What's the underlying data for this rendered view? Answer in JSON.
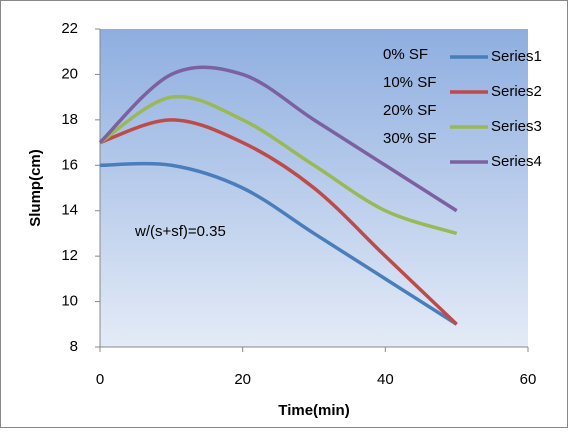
{
  "chart_data": {
    "type": "line",
    "x_label": "Time(min)",
    "y_label": "Slump(cm)",
    "x": [
      0,
      10,
      20,
      30,
      40,
      50
    ],
    "series": [
      {
        "name": "Series1",
        "color": "#4a7ebb",
        "values": [
          16,
          16,
          15,
          13,
          11,
          9
        ]
      },
      {
        "name": "Series2",
        "color": "#be4b48",
        "values": [
          17,
          18,
          17,
          15,
          12,
          9
        ]
      },
      {
        "name": "Series3",
        "color": "#98b954",
        "values": [
          17,
          19,
          18,
          16,
          14,
          13
        ]
      },
      {
        "name": "Series4",
        "color": "#7d60a0",
        "values": [
          17,
          20,
          20,
          18,
          16,
          14
        ]
      }
    ],
    "xlim": [
      0,
      60
    ],
    "xticks": [
      0,
      20,
      40,
      60
    ],
    "ylim": [
      8,
      22
    ],
    "yticks": [
      8,
      10,
      12,
      14,
      16,
      18,
      20,
      22
    ],
    "annotations": [
      "0% SF",
      "10% SF",
      "20% SF",
      "30% SF",
      "w/(s+sf)=0.35"
    ],
    "legend": "top-right",
    "smooth": true
  }
}
